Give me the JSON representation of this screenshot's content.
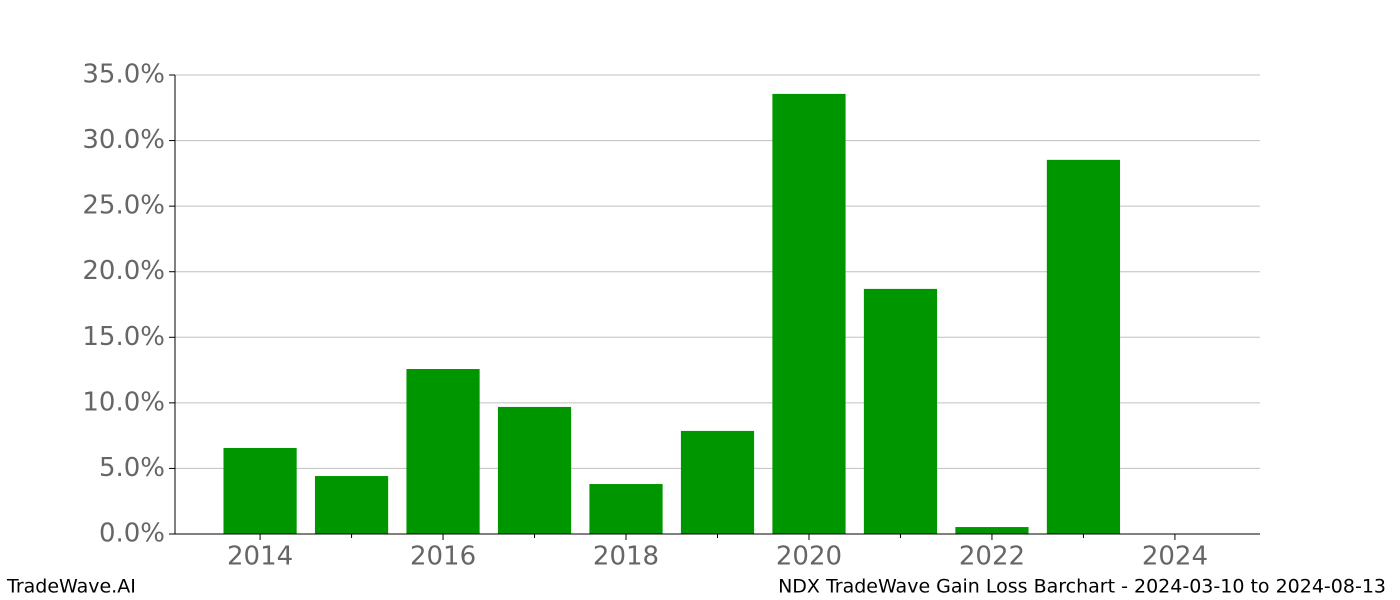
{
  "chart_data": {
    "type": "bar",
    "title": "NDX TradeWave Gain Loss Barchart - 2024-03-10 to 2024-08-13",
    "source": "TradeWave.AI",
    "x": [
      2014,
      2015,
      2016,
      2017,
      2018,
      2019,
      2020,
      2021,
      2022,
      2023
    ],
    "values": [
      6.56,
      4.42,
      12.58,
      9.69,
      3.81,
      7.86,
      33.56,
      18.69,
      0.53,
      28.53
    ],
    "color": "#009600",
    "xlim": [
      2013.07,
      2024.93
    ],
    "xticks": [
      2014,
      2016,
      2018,
      2020,
      2022,
      2024
    ],
    "xminorticks": [
      2015,
      2017,
      2019,
      2021,
      2023
    ],
    "ylim": [
      0,
      35
    ],
    "yticks": [
      {
        "value": 0,
        "label": "0.0%"
      },
      {
        "value": 5,
        "label": "5.0%"
      },
      {
        "value": 10,
        "label": "10.0%"
      },
      {
        "value": 15,
        "label": "15.0%"
      },
      {
        "value": 20,
        "label": "20.0%"
      },
      {
        "value": 25,
        "label": "25.0%"
      },
      {
        "value": 30,
        "label": "30.0%"
      },
      {
        "value": 35,
        "label": "35.0%"
      }
    ],
    "grid": true
  }
}
